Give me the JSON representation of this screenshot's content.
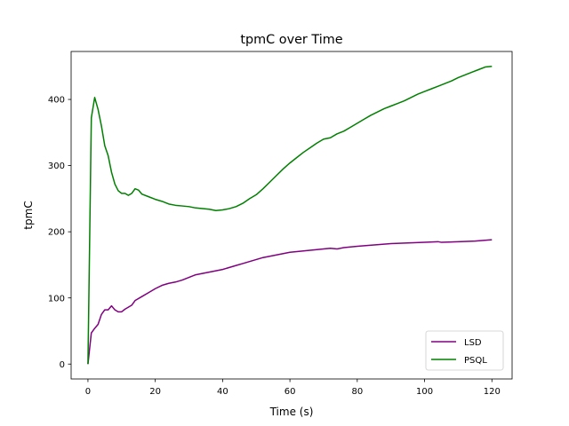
{
  "chart_data": {
    "type": "line",
    "title": "tpmC over Time",
    "xlabel": "Time (s)",
    "ylabel": "tpmC",
    "xlim": [
      -5,
      126
    ],
    "ylim": [
      -22.5,
      472.5
    ],
    "xticks": [
      0,
      20,
      40,
      60,
      80,
      100,
      120
    ],
    "yticks": [
      0,
      100,
      200,
      300,
      400
    ],
    "grid": false,
    "legend_position": "lower-right",
    "series": [
      {
        "name": "LSD",
        "color": "#800080",
        "x": [
          0,
          1,
          2,
          3,
          4,
          5,
          6,
          7,
          8,
          9,
          10,
          11,
          12,
          13,
          14,
          16,
          18,
          20,
          22,
          24,
          26,
          28,
          30,
          32,
          34,
          36,
          38,
          40,
          42,
          44,
          46,
          48,
          50,
          52,
          54,
          56,
          58,
          60,
          62,
          64,
          66,
          68,
          70,
          72,
          74,
          76,
          78,
          80,
          85,
          90,
          95,
          100,
          104,
          105,
          110,
          115,
          120
        ],
        "values": [
          0,
          47,
          54,
          60,
          75,
          82,
          82,
          88,
          82,
          79,
          79,
          83,
          86,
          89,
          96,
          102,
          108,
          114,
          119,
          122,
          124,
          127,
          131,
          135,
          137,
          139,
          141,
          143,
          146,
          149,
          152,
          155,
          158,
          161,
          163,
          165,
          167,
          169,
          170,
          171,
          172,
          173,
          174,
          175,
          174,
          176,
          177,
          178,
          180,
          182,
          183,
          184,
          185,
          184,
          185,
          186,
          188
        ]
      },
      {
        "name": "PSQL",
        "color": "#008000",
        "x": [
          0,
          1,
          2,
          3,
          4,
          5,
          6,
          7,
          8,
          9,
          10,
          11,
          12,
          13,
          14,
          15,
          16,
          18,
          20,
          22,
          24,
          26,
          28,
          30,
          32,
          34,
          36,
          38,
          40,
          42,
          44,
          46,
          48,
          50,
          52,
          54,
          56,
          58,
          60,
          62,
          64,
          66,
          68,
          70,
          72,
          74,
          76,
          78,
          80,
          82,
          84,
          86,
          88,
          90,
          92,
          94,
          96,
          98,
          100,
          102,
          104,
          106,
          108,
          110,
          112,
          114,
          116,
          118,
          120
        ],
        "values": [
          0,
          372,
          403,
          385,
          360,
          330,
          315,
          290,
          272,
          262,
          258,
          258,
          255,
          258,
          265,
          263,
          257,
          253,
          249,
          246,
          242,
          240,
          239,
          238,
          236,
          235,
          234,
          232,
          233,
          235,
          238,
          243,
          250,
          256,
          265,
          275,
          285,
          295,
          304,
          312,
          320,
          327,
          334,
          340,
          342,
          348,
          352,
          358,
          364,
          370,
          376,
          381,
          386,
          390,
          394,
          398,
          403,
          408,
          412,
          416,
          420,
          424,
          428,
          433,
          437,
          441,
          445,
          449,
          450
        ]
      }
    ]
  }
}
